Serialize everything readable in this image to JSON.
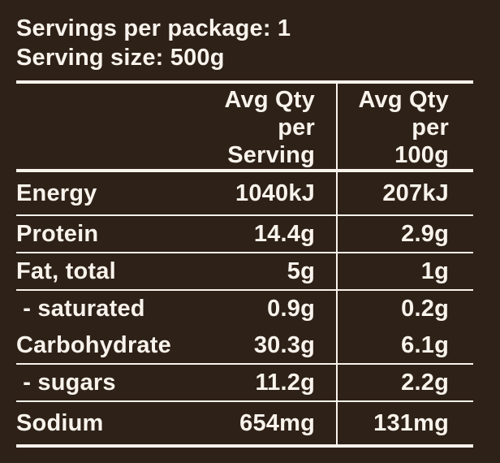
{
  "colors": {
    "background": "#2E2117",
    "foreground": "#F8F3EC"
  },
  "header": {
    "servings_per_package": "Servings per package: 1",
    "serving_size": "Serving size: 500g"
  },
  "columns": {
    "per_serving": "Avg Qty\nper\nServing",
    "per_100g": "Avg Qty\nper\n100g"
  },
  "rows": [
    {
      "label": "Energy",
      "per_serving": "1040kJ",
      "per_100g": "207kJ",
      "separator_after": true
    },
    {
      "label": "Protein",
      "per_serving": "14.4g",
      "per_100g": "2.9g",
      "separator_after": true
    },
    {
      "label": "Fat, total",
      "per_serving": "5g",
      "per_100g": "1g",
      "separator_after": true
    },
    {
      "label": " - saturated",
      "per_serving": "0.9g",
      "per_100g": "0.2g",
      "separator_after": false
    },
    {
      "label": "Carbohydrate",
      "per_serving": "30.3g",
      "per_100g": "6.1g",
      "separator_after": true
    },
    {
      "label": " - sugars",
      "per_serving": "11.2g",
      "per_100g": "2.2g",
      "separator_after": true
    },
    {
      "label": "Sodium",
      "per_serving": "654mg",
      "per_100g": "131mg",
      "separator_after": false
    }
  ]
}
